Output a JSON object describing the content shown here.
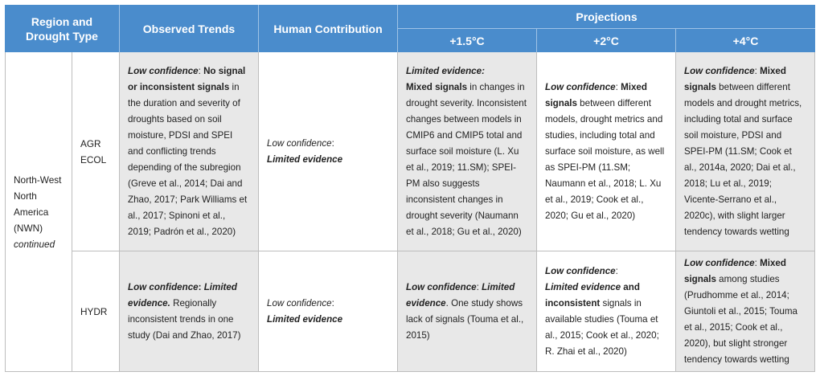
{
  "header": {
    "region": "Region and Drought Type",
    "observed": "Observed Trends",
    "human": "Human Contribution",
    "projections": "Projections",
    "p15": "+1.5°C",
    "p2": "+2°C",
    "p4": "+4°C"
  },
  "region": {
    "l1": "North-West",
    "l2": "North",
    "l3": "America",
    "l4": "(NWN)",
    "l5": "continued"
  },
  "rows": [
    {
      "type_l1": "AGR",
      "type_l2": "ECOL",
      "observed": {
        "conf": "Low confidence",
        "sep": ": ",
        "bold": "No signal or inconsistent signals",
        "rest": " in the duration and severity of droughts based on soil moisture, PDSI and SPEI and conflicting trends depending of the subregion (Greve et al., 2014; Dai and Zhao, 2017; Park Williams et al., 2017; Spinoni et al., 2019; Padrón et al., 2020)"
      },
      "human": {
        "conf": "Low confidence",
        "sep": ":",
        "bold": "Limited evidence"
      },
      "p15": {
        "conf": "Limited evidence:",
        "bold": "Mixed signals",
        "rest": " in changes in drought severity. Inconsistent changes between models in CMIP6 and CMIP5 total and surface soil moisture (L. Xu et al., 2019; 11.SM); SPEI-PM also suggests inconsistent changes in drought severity (Naumann et al., 2018; Gu et al., 2020)"
      },
      "p2": {
        "conf": "Low confidence",
        "sep": ": ",
        "bold": "Mixed signals",
        "rest": " between different models, drought metrics and studies, including total and surface soil moisture, as well as SPEI-PM (11.SM; Naumann et al., 2018; L. Xu et al., 2019; Cook et al., 2020; Gu et al., 2020)"
      },
      "p4": {
        "conf": "Low confidence",
        "sep": ": ",
        "bold": "Mixed signals",
        "rest": " between different models and drought metrics, including total and surface soil moisture, PDSI and SPEI-PM (11.SM; Cook et al., 2014a, 2020; Dai et al., 2018; Lu et al., 2019; Vicente-Serrano et al., 2020c), with slight larger tendency towards wetting"
      }
    },
    {
      "type_l1": "HYDR",
      "observed": {
        "conf": "Low confidence",
        "sep": ": ",
        "bold": "Limited evidence.",
        "rest": " Regionally inconsistent trends in one study (Dai and Zhao, 2017)"
      },
      "human": {
        "conf": "Low confidence",
        "sep": ":",
        "bold": "Limited evidence"
      },
      "p15": {
        "conf": "Low confidence",
        "sep": ": ",
        "bold": "Limited evidence",
        "rest": ". One study shows lack of signals (Touma et al., 2015)"
      },
      "p2": {
        "conf": "Low confidence",
        "sep": ":",
        "bold": "Limited evidence",
        "and": " and ",
        "bold2": "inconsistent",
        "rest": " signals in available studies (Touma et al., 2015; Cook et al., 2020; R. Zhai et al., 2020)"
      },
      "p4": {
        "conf": "Low confidence",
        "sep": ": ",
        "bold": "Mixed signals",
        "rest": " among studies (Prudhomme et al., 2014; Giuntoli et al., 2015; Touma et al., 2015; Cook et al., 2020), but slight stronger tendency towards wetting"
      }
    }
  ]
}
